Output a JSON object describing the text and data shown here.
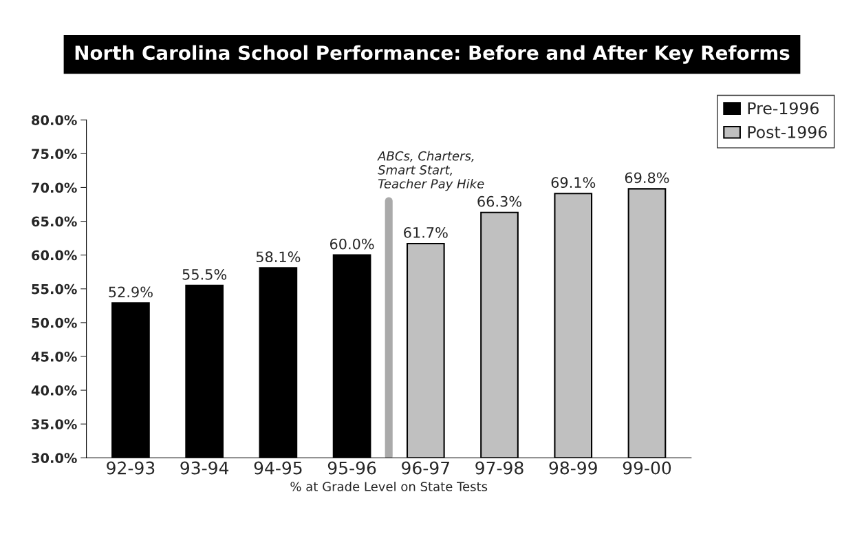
{
  "chart_data": {
    "type": "bar",
    "title": "North Carolina School Performance: Before and After Key Reforms",
    "xlabel": "% at Grade Level on State Tests",
    "categories": [
      "92-93",
      "93-94",
      "94-95",
      "95-96",
      "96-97",
      "97-98",
      "98-99",
      "99-00"
    ],
    "series": [
      {
        "name": "Pre-1996",
        "color": "#000000",
        "values": [
          52.9,
          55.5,
          58.1,
          60.0,
          null,
          null,
          null,
          null
        ],
        "value_labels": [
          "52.9%",
          "55.5%",
          "58.1%",
          "60.0%",
          null,
          null,
          null,
          null
        ]
      },
      {
        "name": "Post-1996",
        "color": "#c0c0c0",
        "values": [
          null,
          null,
          null,
          null,
          61.7,
          66.3,
          69.1,
          69.8
        ],
        "value_labels": [
          null,
          null,
          null,
          null,
          "61.7%",
          "66.3%",
          "69.1%",
          "69.8%"
        ]
      }
    ],
    "annotations": [
      "ABCs, Charters,\nSmart Start,\nTeacher Pay Hike"
    ],
    "ylim": [
      30,
      80
    ],
    "yticks": [
      {
        "value": 30,
        "label": "30.0%"
      },
      {
        "value": 35,
        "label": "35.0%"
      },
      {
        "value": 40,
        "label": "40.0%"
      },
      {
        "value": 45,
        "label": "45.0%"
      },
      {
        "value": 50,
        "label": "50.0%"
      },
      {
        "value": 55,
        "label": "55.0%"
      },
      {
        "value": 60,
        "label": "60.0%"
      },
      {
        "value": 65,
        "label": "65.0%"
      },
      {
        "value": 70,
        "label": "70.0%"
      },
      {
        "value": 75,
        "label": "75.0%"
      },
      {
        "value": 80,
        "label": "80.0%"
      }
    ],
    "grid": false,
    "legend": "top right"
  }
}
